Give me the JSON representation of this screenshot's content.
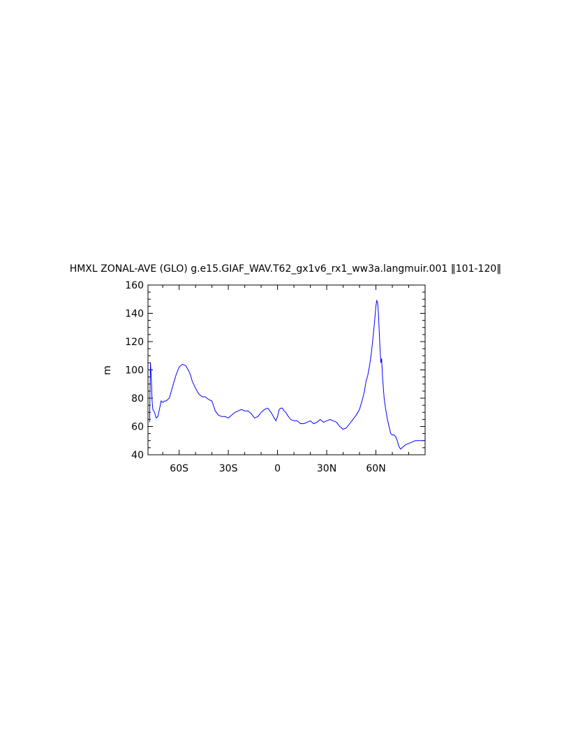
{
  "chart_data": {
    "type": "line",
    "title": "HMXL ZONAL-AVE (GLO) g.e15.GIAF_WAV.T62_gx1v6_rx1_ww3a.langmuir.001 ‖101-120‖",
    "xlabel": "",
    "ylabel": "m",
    "xlim": [
      -79,
      90
    ],
    "ylim": [
      40,
      160
    ],
    "grid": false,
    "x_ticks": [
      -60,
      -30,
      0,
      30,
      60
    ],
    "x_tick_labels": [
      "60S",
      "30S",
      "0",
      "30N",
      "60N"
    ],
    "y_ticks": [
      40,
      60,
      80,
      100,
      120,
      140,
      160
    ],
    "y_tick_labels": [
      "40",
      "60",
      "80",
      "100",
      "120",
      "140",
      "160"
    ],
    "series": [
      {
        "color": "#0000ff",
        "x": [
          -78,
          -77.5,
          -77,
          -76.5,
          -76,
          -75,
          -74,
          -73,
          -72,
          -71,
          -70,
          -69,
          -68,
          -67,
          -66,
          -65,
          -64,
          -62,
          -60,
          -58,
          -56,
          -55,
          -54,
          -53,
          -52,
          -50,
          -48,
          -46,
          -44,
          -42,
          -40,
          -38,
          -36,
          -34,
          -32,
          -30,
          -28,
          -26,
          -24,
          -22,
          -20,
          -18,
          -16,
          -14,
          -12,
          -10,
          -8,
          -6,
          -4,
          -2,
          -1,
          0,
          1,
          2,
          3,
          4,
          5,
          6,
          8,
          10,
          12,
          14,
          16,
          18,
          20,
          22,
          24,
          26,
          28,
          30,
          32,
          34,
          36,
          38,
          40,
          42,
          44,
          46,
          48,
          50,
          52,
          53,
          54,
          55,
          56,
          57,
          58,
          59,
          60,
          60.5,
          61,
          61.5,
          62,
          62.5,
          63,
          63.5,
          64,
          64.5,
          65,
          66,
          67,
          68,
          69,
          70,
          71,
          72,
          73,
          74,
          75,
          76,
          77,
          78,
          80,
          82,
          84,
          86,
          88,
          89
        ],
        "y": [
          63,
          105,
          95,
          78,
          72,
          70,
          66,
          67,
          72,
          78,
          77,
          78,
          78,
          79,
          80,
          84,
          88,
          96,
          102,
          104,
          103,
          101,
          99,
          96,
          92,
          87,
          83,
          81,
          81,
          79,
          78,
          71,
          68,
          67,
          67,
          66,
          68,
          70,
          71,
          72,
          71,
          71,
          69,
          66,
          67,
          70,
          72,
          73,
          70,
          66,
          64,
          67,
          72,
          73,
          73,
          71,
          70,
          68,
          65,
          64,
          64,
          62,
          62,
          63,
          64,
          62,
          63,
          65,
          63,
          64,
          65,
          64,
          63,
          60,
          58,
          59,
          62,
          65,
          68,
          72,
          80,
          85,
          92,
          96,
          102,
          110,
          120,
          132,
          145,
          149,
          148,
          140,
          128,
          115,
          105,
          108,
          96,
          88,
          80,
          72,
          65,
          60,
          55,
          54,
          54,
          53,
          50,
          46,
          44,
          45,
          46,
          47,
          48,
          49,
          50,
          50,
          50,
          50
        ]
      }
    ]
  }
}
